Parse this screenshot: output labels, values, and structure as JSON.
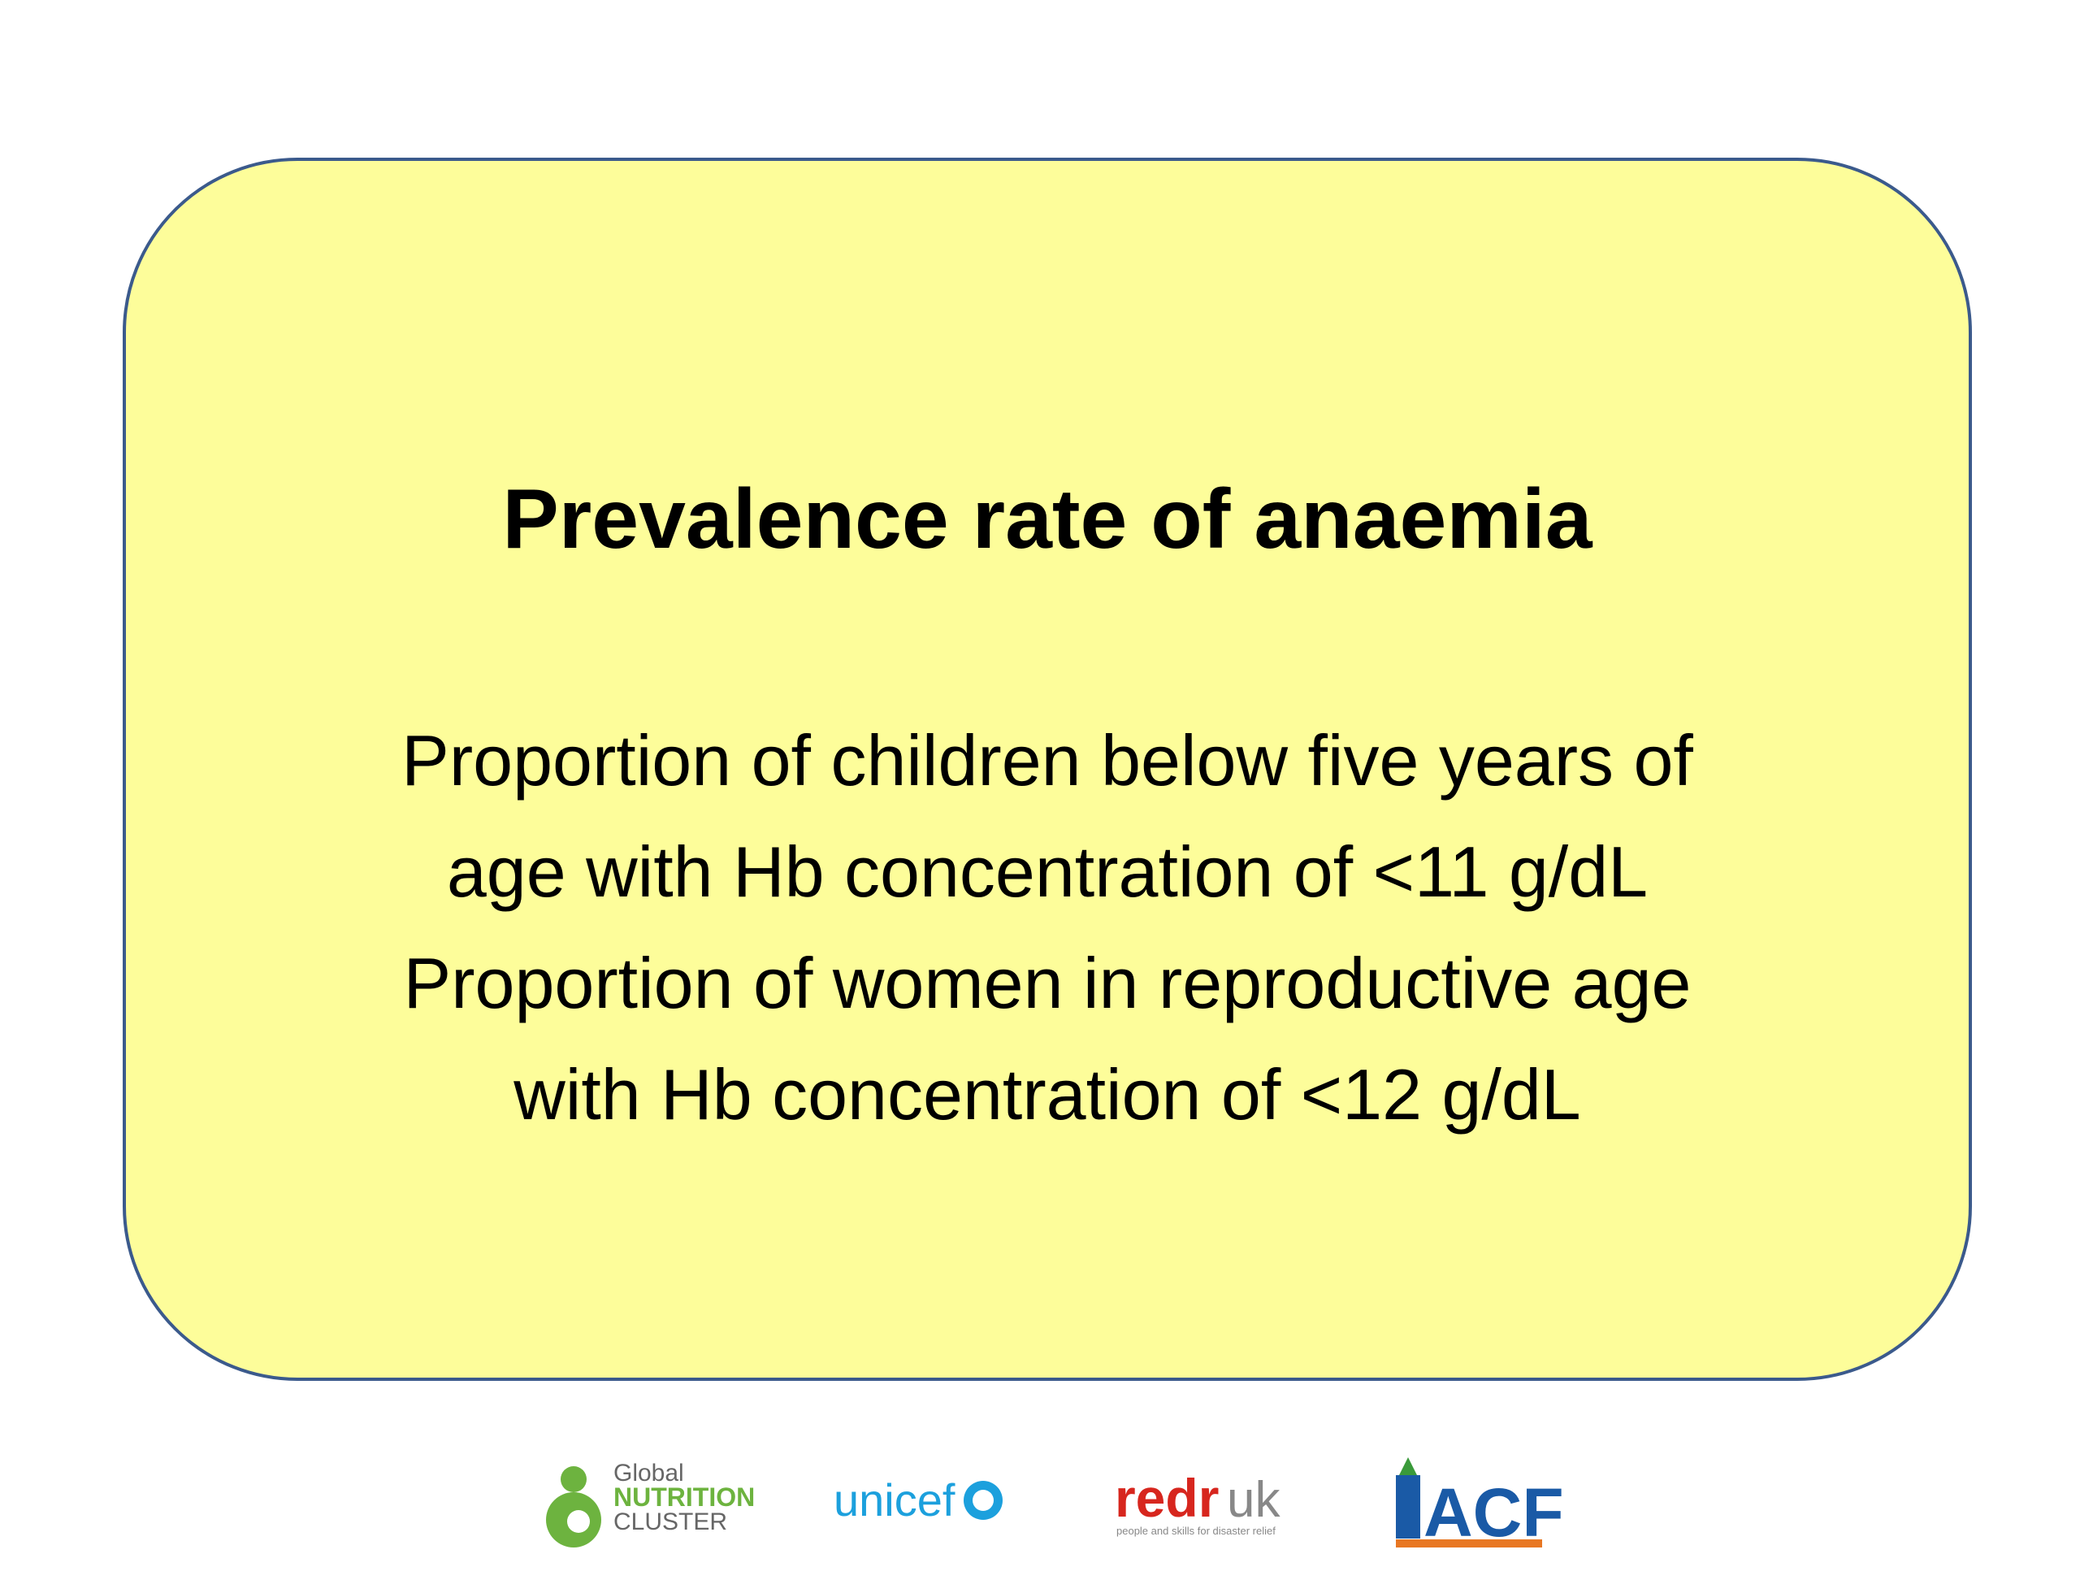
{
  "slide": {
    "title": "Prevalence rate of anaemia",
    "body": [
      "Proportion of children below five years of",
      "age with Hb concentration of <11 g/dL",
      "Proportion of women in reproductive age",
      "with Hb concentration of <12 g/dL"
    ]
  },
  "logos": {
    "gnc": [
      "Global",
      "NUTRITION",
      "CLUSTER"
    ],
    "unicef": "unicef",
    "redr": {
      "name": "redr",
      "suffix": "uk",
      "tagline": "people and skills for disaster relief"
    },
    "acf": "ACF"
  }
}
